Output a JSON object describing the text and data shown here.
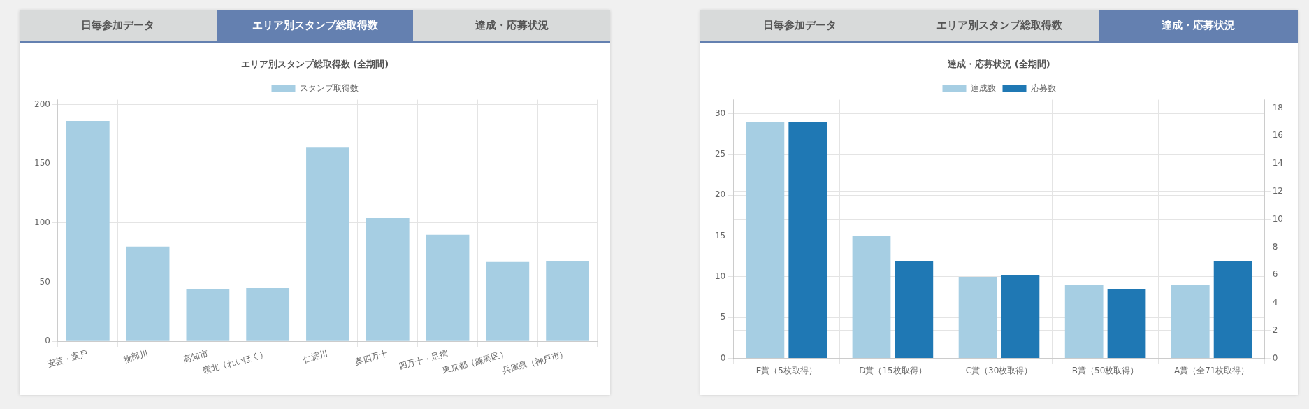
{
  "chart_data": [
    {
      "type": "bar",
      "title": "エリア別スタンプ総取得数 (全期間)",
      "annotations": [
        "日毎参加データ",
        "エリア別スタンプ総取得数",
        "達成・応募状況"
      ],
      "categories": [
        "安芸・室戸",
        "物部川",
        "高知市",
        "嶺北（れいほく）",
        "仁淀川",
        "奥四万十",
        "四万十・足摺",
        "東京都（練馬区）",
        "兵庫県（神戸市）"
      ],
      "series": [
        {
          "name": "スタンプ取得数",
          "color": "#a6cee3",
          "values": [
            186,
            80,
            44,
            45,
            164,
            104,
            90,
            67,
            68
          ]
        }
      ],
      "ylim": [
        0,
        204
      ],
      "yticks": [
        0,
        50,
        100,
        150,
        200
      ],
      "grid": true,
      "legend": "top"
    },
    {
      "type": "bar",
      "title": "達成・応募状況 (全期間)",
      "annotations": [
        "日毎参加データ",
        "エリア別スタンプ総取得数",
        "達成・応募状況"
      ],
      "categories": [
        "E賞（5枚取得）",
        "D賞（15枚取得）",
        "C賞（30枚取得）",
        "B賞（50枚取得）",
        "A賞（全71枚取得）"
      ],
      "series": [
        {
          "name": "達成数",
          "color": "#a6cee3",
          "values": [
            29,
            15,
            10,
            9,
            9
          ]
        },
        {
          "name": "応募数",
          "color": "#1f78b4",
          "axis": "y2",
          "values": [
            17,
            7,
            6,
            5,
            7
          ]
        }
      ],
      "ylim": [
        0,
        31.7
      ],
      "yticks": [
        0,
        5,
        10,
        15,
        20,
        25,
        30
      ],
      "y2lim": [
        0,
        18.6
      ],
      "y2ticks": [
        0,
        2,
        4,
        6,
        8,
        10,
        12,
        14,
        16,
        18
      ],
      "grid": true,
      "legend": "top"
    }
  ]
}
